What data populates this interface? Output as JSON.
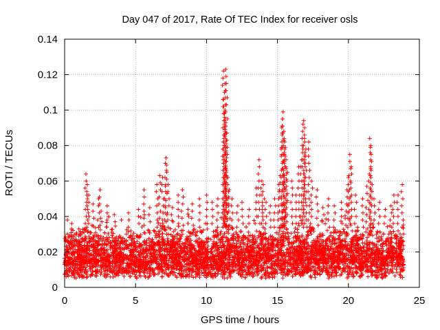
{
  "chart_data": {
    "type": "scatter",
    "title": "Day 047 of 2017, Rate Of TEC Index for receiver osls",
    "xlabel": "GPS time / hours",
    "ylabel": "ROTI / TECUs",
    "xlim": [
      0,
      25
    ],
    "ylim": [
      0,
      0.14
    ],
    "grid": true,
    "marker": "+",
    "color": "#ff0000",
    "x_ticks": [
      0,
      5,
      10,
      15,
      20,
      25
    ],
    "x_tick_labels": [
      "0",
      "5",
      "10",
      "15",
      "20",
      "25"
    ],
    "y_ticks": [
      0,
      0.02,
      0.04,
      0.06,
      0.08,
      0.1,
      0.12,
      0.14
    ],
    "y_tick_labels": [
      "0",
      "0.02",
      "0.04",
      "0.06",
      "0.08",
      "0.1",
      "0.12",
      "0.14"
    ],
    "data_range_x": [
      0,
      23.9
    ],
    "baseline_band": [
      0.005,
      0.035
    ],
    "series": [
      {
        "name": "ROTI",
        "points": [
          [
            0.2,
            0.038
          ],
          [
            0.5,
            0.036
          ],
          [
            1.0,
            0.033
          ],
          [
            1.5,
            0.064
          ],
          [
            1.6,
            0.058
          ],
          [
            1.7,
            0.052
          ],
          [
            2.0,
            0.047
          ],
          [
            2.4,
            0.05
          ],
          [
            2.5,
            0.055
          ],
          [
            3.0,
            0.046
          ],
          [
            3.5,
            0.041
          ],
          [
            4.0,
            0.038
          ],
          [
            4.5,
            0.042
          ],
          [
            5.2,
            0.044
          ],
          [
            5.6,
            0.055
          ],
          [
            6.0,
            0.045
          ],
          [
            6.5,
            0.058
          ],
          [
            6.7,
            0.063
          ],
          [
            6.9,
            0.062
          ],
          [
            7.1,
            0.07
          ],
          [
            7.15,
            0.073
          ],
          [
            7.3,
            0.058
          ],
          [
            7.6,
            0.045
          ],
          [
            8.0,
            0.052
          ],
          [
            8.3,
            0.055
          ],
          [
            8.7,
            0.044
          ],
          [
            9.0,
            0.047
          ],
          [
            9.5,
            0.05
          ],
          [
            10.0,
            0.052
          ],
          [
            10.4,
            0.048
          ],
          [
            10.8,
            0.05
          ],
          [
            11.2,
            0.122
          ],
          [
            11.35,
            0.123
          ],
          [
            11.4,
            0.115
          ],
          [
            11.2,
            0.106
          ],
          [
            11.3,
            0.1
          ],
          [
            11.35,
            0.093
          ],
          [
            11.4,
            0.087
          ],
          [
            11.25,
            0.08
          ],
          [
            11.3,
            0.075
          ],
          [
            11.4,
            0.066
          ],
          [
            11.5,
            0.062
          ],
          [
            11.6,
            0.055
          ],
          [
            11.8,
            0.05
          ],
          [
            12.2,
            0.046
          ],
          [
            12.5,
            0.048
          ],
          [
            13.0,
            0.044
          ],
          [
            13.5,
            0.056
          ],
          [
            13.7,
            0.072
          ],
          [
            13.9,
            0.06
          ],
          [
            14.0,
            0.058
          ],
          [
            14.2,
            0.048
          ],
          [
            14.5,
            0.046
          ],
          [
            14.8,
            0.05
          ],
          [
            15.1,
            0.058
          ],
          [
            15.2,
            0.063
          ],
          [
            15.3,
            0.09
          ],
          [
            15.35,
            0.095
          ],
          [
            15.4,
            0.099
          ],
          [
            15.45,
            0.088
          ],
          [
            15.5,
            0.082
          ],
          [
            15.55,
            0.079
          ],
          [
            15.6,
            0.072
          ],
          [
            15.7,
            0.065
          ],
          [
            16.0,
            0.06
          ],
          [
            16.3,
            0.052
          ],
          [
            16.5,
            0.068
          ],
          [
            16.7,
            0.072
          ],
          [
            16.8,
            0.092
          ],
          [
            16.85,
            0.094
          ],
          [
            16.9,
            0.084
          ],
          [
            17.0,
            0.078
          ],
          [
            17.2,
            0.082
          ],
          [
            17.4,
            0.06
          ],
          [
            17.8,
            0.055
          ],
          [
            18.2,
            0.045
          ],
          [
            18.6,
            0.05
          ],
          [
            19.0,
            0.046
          ],
          [
            19.5,
            0.048
          ],
          [
            19.9,
            0.055
          ],
          [
            20.0,
            0.062
          ],
          [
            20.1,
            0.075
          ],
          [
            20.2,
            0.068
          ],
          [
            20.5,
            0.052
          ],
          [
            21.0,
            0.05
          ],
          [
            21.3,
            0.057
          ],
          [
            21.5,
            0.084
          ],
          [
            21.55,
            0.079
          ],
          [
            21.6,
            0.066
          ],
          [
            21.8,
            0.05
          ],
          [
            22.2,
            0.048
          ],
          [
            22.6,
            0.044
          ],
          [
            23.0,
            0.046
          ],
          [
            23.2,
            0.052
          ],
          [
            23.5,
            0.052
          ],
          [
            23.8,
            0.058
          ],
          [
            0.1,
            0.009
          ],
          [
            5.0,
            0.006
          ],
          [
            10.0,
            0.007
          ],
          [
            15.0,
            0.008
          ],
          [
            20.0,
            0.007
          ],
          [
            23.8,
            0.01
          ]
        ]
      }
    ]
  }
}
